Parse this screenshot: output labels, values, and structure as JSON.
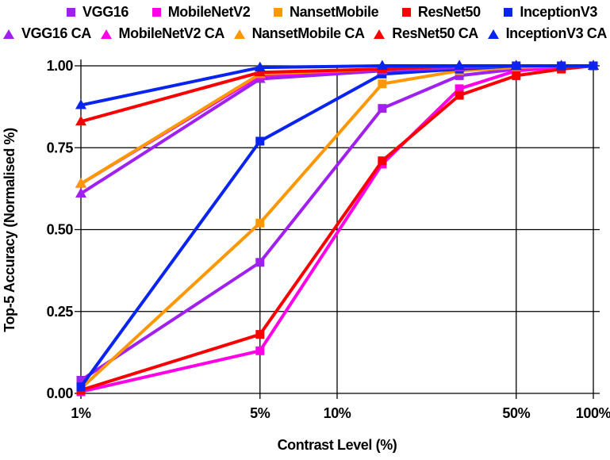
{
  "chart_data": {
    "type": "line",
    "title": "",
    "xlabel": "Contrast Level (%)",
    "ylabel": "Top-5 Accuracy  (Normalised %)",
    "x_scale": "log",
    "xlim": [
      1,
      100
    ],
    "ylim": [
      0.0,
      1.0
    ],
    "grid": true,
    "legend_position": "top",
    "x": [
      1,
      5,
      15,
      30,
      50,
      75,
      100
    ],
    "xticks": [
      {
        "value": 1,
        "label": "1%"
      },
      {
        "value": 5,
        "label": "5%"
      },
      {
        "value": 10,
        "label": "10%"
      },
      {
        "value": 50,
        "label": "50%"
      },
      {
        "value": 100,
        "label": "100%"
      }
    ],
    "yticks": [
      {
        "value": 0.0,
        "label": "0.00"
      },
      {
        "value": 0.25,
        "label": "0.25"
      },
      {
        "value": 0.5,
        "label": "0.50"
      },
      {
        "value": 0.75,
        "label": "0.75"
      },
      {
        "value": 1.0,
        "label": "1.00"
      }
    ],
    "series": [
      {
        "name": "VGG16",
        "color": "#A020F0",
        "marker": "square",
        "values": [
          0.04,
          0.4,
          0.87,
          0.97,
          0.99,
          0.995,
          1.0
        ]
      },
      {
        "name": "MobileNetV2",
        "color": "#FF00E6",
        "marker": "square",
        "values": [
          0.005,
          0.13,
          0.7,
          0.93,
          0.985,
          0.995,
          1.0
        ]
      },
      {
        "name": "NansetMobile",
        "color": "#FF9800",
        "marker": "square",
        "values": [
          0.015,
          0.52,
          0.945,
          0.985,
          0.995,
          1.0,
          1.0
        ]
      },
      {
        "name": "ResNet50",
        "color": "#F80000",
        "marker": "square",
        "values": [
          0.01,
          0.18,
          0.71,
          0.91,
          0.97,
          0.99,
          1.0
        ]
      },
      {
        "name": "InceptionV3",
        "color": "#0A24F0",
        "marker": "square",
        "values": [
          0.02,
          0.77,
          0.975,
          0.99,
          1.0,
          1.0,
          1.0
        ]
      },
      {
        "name": "VGG16 CA",
        "color": "#A020F0",
        "marker": "triangle",
        "values": [
          0.61,
          0.96,
          0.985,
          0.995,
          1.0,
          1.0,
          1.0
        ]
      },
      {
        "name": "MobileNetV2 CA",
        "color": "#FF00E6",
        "marker": "triangle",
        "values": [
          0.64,
          0.97,
          0.99,
          1.0,
          1.0,
          1.0,
          1.0
        ]
      },
      {
        "name": "NansetMobile CA",
        "color": "#FF9800",
        "marker": "triangle",
        "values": [
          0.64,
          0.975,
          0.99,
          1.0,
          1.0,
          1.0,
          1.0
        ]
      },
      {
        "name": "ResNet50 CA",
        "color": "#F80000",
        "marker": "triangle",
        "values": [
          0.83,
          0.98,
          0.99,
          1.0,
          1.0,
          1.0,
          1.0
        ]
      },
      {
        "name": "InceptionV3 CA",
        "color": "#0A24F0",
        "marker": "triangle",
        "values": [
          0.88,
          0.995,
          1.0,
          1.0,
          1.0,
          1.0,
          1.0
        ]
      }
    ]
  }
}
